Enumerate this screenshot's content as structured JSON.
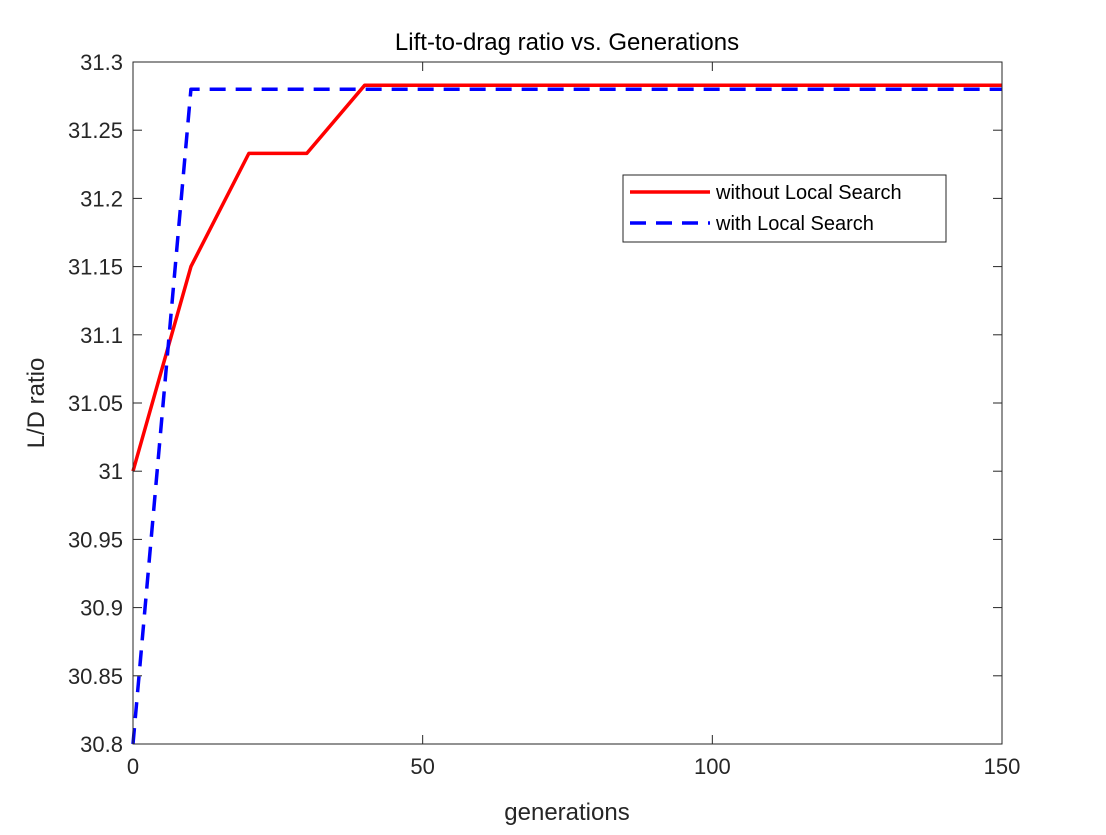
{
  "chart_data": {
    "type": "line",
    "title": "Lift-to-drag ratio vs. Generations",
    "xlabel": "generations",
    "ylabel": "L/D ratio",
    "xlim": [
      0,
      150
    ],
    "ylim": [
      30.8,
      31.3
    ],
    "xticks": [
      0,
      50,
      100,
      150
    ],
    "xtick_labels": [
      "0",
      "50",
      "100",
      "150"
    ],
    "yticks": [
      30.8,
      30.85,
      30.9,
      30.95,
      31,
      31.05,
      31.1,
      31.15,
      31.2,
      31.25,
      31.3
    ],
    "ytick_labels": [
      "30.8",
      "30.85",
      "30.9",
      "30.95",
      "31",
      "31.05",
      "31.1",
      "31.15",
      "31.2",
      "31.25",
      "31.3"
    ],
    "grid": false,
    "legend_position": "top-right",
    "series": [
      {
        "name": "without Local Search",
        "color": "#ff0000",
        "line_style": "solid",
        "x": [
          0,
          10,
          20,
          30,
          40,
          150
        ],
        "y": [
          31.0,
          31.15,
          31.233,
          31.233,
          31.283,
          31.283
        ]
      },
      {
        "name": "with Local Search",
        "color": "#0000ff",
        "line_style": "dashed",
        "x": [
          0,
          10,
          150
        ],
        "y": [
          30.8,
          31.28,
          31.28
        ]
      }
    ]
  }
}
